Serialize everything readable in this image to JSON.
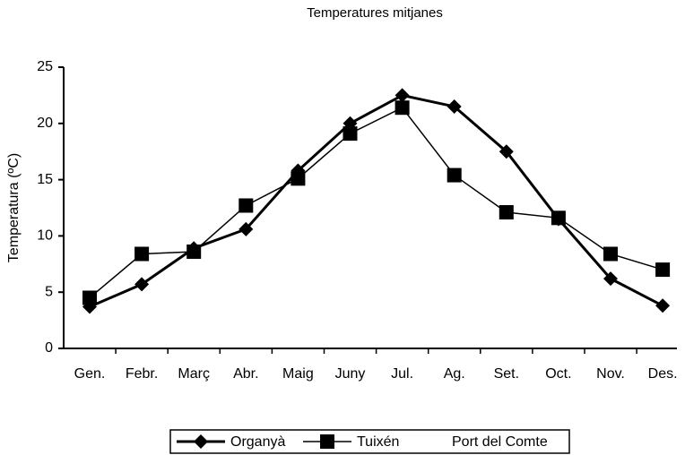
{
  "chart_data": {
    "type": "line",
    "title": "Temperatures mitjanes",
    "y_label": "Temperatura (ºC)",
    "categories": [
      "Gen.",
      "Febr.",
      "Març",
      "Abr.",
      "Maig",
      "Juny",
      "Jul.",
      "Ag.",
      "Set.",
      "Oct.",
      "Nov.",
      "Des."
    ],
    "series": [
      {
        "name": "Organyà",
        "color": "#000000",
        "marker": "diamond",
        "line_width": 3,
        "values": [
          3.7,
          5.7,
          8.9,
          10.6,
          15.8,
          20,
          22.5,
          21.5,
          17.5,
          11.5,
          6.2,
          3.8
        ]
      },
      {
        "name": "Tuixén",
        "color": "#000000",
        "marker": "square",
        "line_width": 1.5,
        "values": [
          4.5,
          8.4,
          8.6,
          12.7,
          15.1,
          19.1,
          21.4,
          15.4,
          12.1,
          11.6,
          8.4,
          7.0
        ]
      },
      {
        "name": "Port del Comte",
        "color": "#000000",
        "marker": "none",
        "line_width": 0,
        "values": [
          null,
          null,
          null,
          null,
          null,
          null,
          null,
          null,
          null,
          null,
          null,
          null
        ]
      }
    ],
    "ylim": [
      0,
      25
    ],
    "yticks": [
      0,
      5,
      10,
      15,
      20,
      25
    ],
    "grid": false,
    "legend": "bottom"
  }
}
